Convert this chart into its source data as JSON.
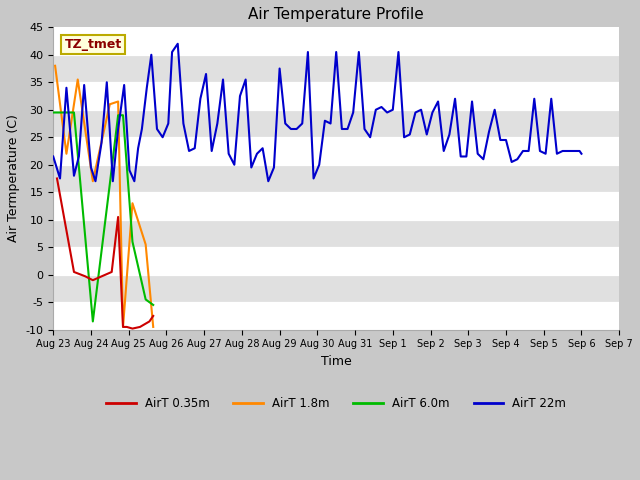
{
  "title": "Air Temperature Profile",
  "xlabel": "Time",
  "ylabel": "Air Termperature (C)",
  "ylim": [
    -10,
    45
  ],
  "annotation_text": "TZ_tmet",
  "annotation_color": "#8b0000",
  "annotation_bg": "#ffffdd",
  "annotation_border": "#bbaa00",
  "x_tick_labels": [
    "Aug 23",
    "Aug 24",
    "Aug 25",
    "Aug 26",
    "Aug 27",
    "Aug 28",
    "Aug 29",
    "Aug 30",
    "Aug 31",
    "Sep 1",
    "Sep 2",
    "Sep 3",
    "Sep 4",
    "Sep 5",
    "Sep 6",
    "Sep 7"
  ],
  "series_colors": {
    "AirT_035": "#cc0000",
    "AirT_18": "#ff8800",
    "AirT_60": "#00bb00",
    "AirT_22m": "#0000cc"
  },
  "series_labels": {
    "AirT_035": "AirT 0.35m",
    "AirT_18": "AirT 1.8m",
    "AirT_60": "AirT 6.0m",
    "AirT_22m": "AirT 22m"
  },
  "red_x_days": [
    0.1,
    0.55,
    0.85,
    1.05,
    1.55,
    1.72,
    1.85,
    1.95,
    2.1,
    2.3,
    2.55,
    2.65
  ],
  "red_y": [
    17.5,
    0.5,
    -0.3,
    -1.0,
    0.5,
    10.5,
    -9.5,
    -9.5,
    -9.8,
    -9.5,
    -8.5,
    -7.5
  ],
  "orange_x_days": [
    0.05,
    0.35,
    0.65,
    1.05,
    1.5,
    1.72,
    1.85,
    2.1,
    2.45,
    2.65
  ],
  "orange_y": [
    38.0,
    22.0,
    35.5,
    17.0,
    31.0,
    31.5,
    -9.5,
    13.0,
    5.5,
    -9.5
  ],
  "green_x_days": [
    0.02,
    0.1,
    0.55,
    1.05,
    1.5,
    1.72,
    1.85,
    2.1,
    2.45,
    2.65
  ],
  "green_y": [
    29.5,
    29.5,
    29.5,
    -8.5,
    16.5,
    29.0,
    29.0,
    6.0,
    -4.5,
    -5.5
  ],
  "blue_x_days": [
    0.0,
    0.18,
    0.35,
    0.55,
    0.68,
    0.82,
    1.0,
    1.12,
    1.28,
    1.42,
    1.58,
    1.72,
    1.88,
    2.02,
    2.15,
    2.25,
    2.35,
    2.48,
    2.6,
    2.75,
    2.9,
    3.05,
    3.15,
    3.3,
    3.45,
    3.6,
    3.75,
    3.9,
    4.05,
    4.2,
    4.35,
    4.5,
    4.65,
    4.8,
    4.95,
    5.1,
    5.25,
    5.4,
    5.55,
    5.7,
    5.85,
    6.0,
    6.15,
    6.3,
    6.45,
    6.6,
    6.75,
    6.9,
    7.05,
    7.2,
    7.35,
    7.5,
    7.65,
    7.8,
    7.95,
    8.1,
    8.25,
    8.4,
    8.55,
    8.7,
    8.85,
    9.0,
    9.15,
    9.3,
    9.45,
    9.6,
    9.75,
    9.9,
    10.05,
    10.2,
    10.35,
    10.5,
    10.65,
    10.8,
    10.95,
    11.1,
    11.25,
    11.4,
    11.55,
    11.7,
    11.85,
    12.0,
    12.15,
    12.3,
    12.45,
    12.6,
    12.75,
    12.9,
    13.05,
    13.2,
    13.35,
    13.5,
    13.65,
    13.8,
    13.95,
    14.0
  ],
  "blue_y": [
    21.5,
    17.5,
    34.0,
    18.0,
    21.5,
    34.5,
    19.5,
    17.0,
    24.0,
    35.0,
    17.0,
    26.5,
    34.5,
    19.0,
    17.0,
    23.0,
    26.5,
    34.0,
    40.0,
    26.5,
    25.0,
    27.5,
    40.5,
    42.0,
    27.5,
    22.5,
    23.0,
    32.0,
    36.5,
    22.5,
    27.5,
    35.5,
    22.0,
    20.0,
    32.5,
    35.5,
    19.5,
    22.0,
    23.0,
    17.0,
    19.5,
    37.5,
    27.5,
    26.5,
    26.5,
    27.5,
    40.5,
    17.5,
    20.0,
    28.0,
    27.5,
    40.5,
    26.5,
    26.5,
    29.5,
    40.5,
    26.5,
    25.0,
    30.0,
    30.5,
    29.5,
    30.0,
    40.5,
    25.0,
    25.5,
    29.5,
    30.0,
    25.5,
    29.5,
    31.5,
    22.5,
    25.5,
    32.0,
    21.5,
    21.5,
    31.5,
    22.0,
    21.0,
    26.0,
    30.0,
    24.5,
    24.5,
    20.5,
    21.0,
    22.5,
    22.5,
    32.0,
    22.5,
    22.0,
    32.0,
    22.0,
    22.5,
    22.5,
    22.5,
    22.5,
    22.0
  ]
}
